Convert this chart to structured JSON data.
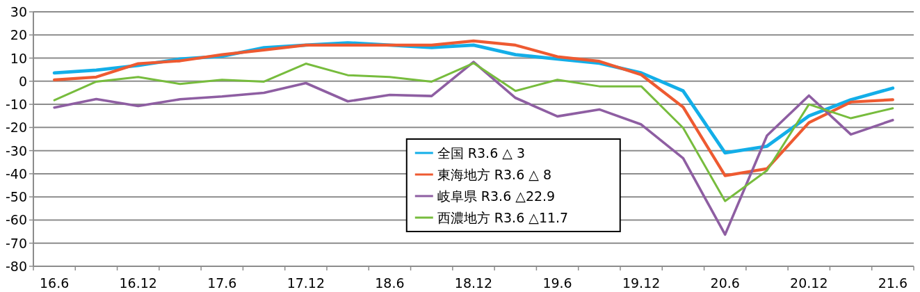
{
  "chart_data": {
    "type": "line",
    "categories": [
      "16.6",
      null,
      "16.12",
      null,
      "17.6",
      null,
      "17.12",
      null,
      "18.6",
      null,
      "18.12",
      null,
      "19.6",
      null,
      "19.12",
      null,
      "20.6",
      null,
      "20.12",
      null,
      "21.6"
    ],
    "series": [
      {
        "name": "全国 R3.6 △ 3",
        "color": "#13aee8",
        "values": [
          3.6,
          4.8,
          6.8,
          9.6,
          10.8,
          14.5,
          15.6,
          16.6,
          15.6,
          14.6,
          15.6,
          11.5,
          9.6,
          7.8,
          3.6,
          -4.2,
          -31,
          -28.1,
          -15,
          -8,
          -3
        ]
      },
      {
        "name": "東海地方 R3.6 △ 8",
        "color": "#ee5a31",
        "values": [
          0.6,
          1.8,
          7.6,
          8.8,
          11.5,
          13.5,
          15.6,
          15.6,
          15.6,
          15.6,
          17.4,
          15.6,
          10.6,
          8.6,
          2.8,
          -11.2,
          -40.8,
          -37.8,
          -17.9,
          -9,
          -8
        ]
      },
      {
        "name": "岐阜県 R3.6 △22.9",
        "color": "#8e5ea2",
        "values": [
          -11.4,
          -7.7,
          -10.7,
          -7.8,
          -6.6,
          -5.0,
          -0.8,
          -8.7,
          -5.9,
          -6.4,
          8.3,
          -7.2,
          -15.2,
          -12.2,
          -18.7,
          -33.3,
          -66.3,
          -23.5,
          -6.2,
          -23,
          -16.8
        ]
      },
      {
        "name": "西濃地方 R3.6 △11.7",
        "color": "#77bc3d",
        "values": [
          -8.2,
          -0.2,
          1.8,
          -1.2,
          0.6,
          -0.2,
          7.6,
          2.6,
          1.8,
          -0.2,
          7.8,
          -4.2,
          0.6,
          -2.2,
          -2.2,
          -20.2,
          -51.8,
          -38.6,
          -10,
          -16,
          -11.7
        ]
      }
    ],
    "ylim": [
      -80,
      30
    ],
    "yticks": [
      -80,
      -70,
      -60,
      -50,
      -40,
      -30,
      -20,
      -10,
      0,
      10,
      20,
      30
    ],
    "grid": "y",
    "legend": "bottom",
    "marker": "none",
    "line_style": "solid"
  }
}
